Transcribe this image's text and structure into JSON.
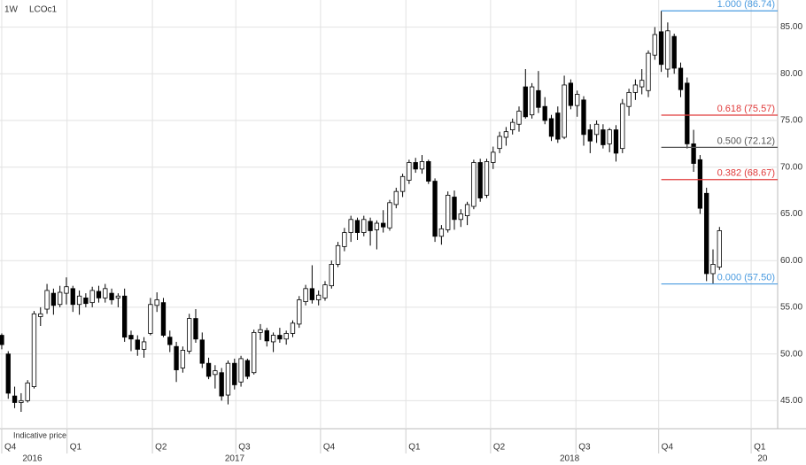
{
  "header": {
    "interval": "1W",
    "symbol": "LCOc1",
    "note": "Indicative price"
  },
  "chart_data": {
    "type": "candlestick",
    "up_color": "#ffffff",
    "down_color": "#000000",
    "outline": "#000000",
    "grid": true,
    "ylim": [
      42,
      87.9
    ],
    "yticks": [
      {
        "value": 45,
        "label": "45.00"
      },
      {
        "value": 50,
        "label": "50.00"
      },
      {
        "value": 55,
        "label": "55.00"
      },
      {
        "value": 60,
        "label": "60.00"
      },
      {
        "value": 65,
        "label": "65.00"
      },
      {
        "value": 70,
        "label": "70.00"
      },
      {
        "value": 75,
        "label": "75.00"
      },
      {
        "value": 80,
        "label": "80.00"
      },
      {
        "value": 85,
        "label": "85.00"
      }
    ],
    "xlim": [
      -0.27,
      120
    ],
    "xticks": [
      {
        "value": 0,
        "label": "Q4"
      },
      {
        "value": 10.1,
        "label": "Q1"
      },
      {
        "value": 23.3,
        "label": "Q2"
      },
      {
        "value": 36.2,
        "label": "Q3"
      },
      {
        "value": 49.3,
        "label": "Q4"
      },
      {
        "value": 62.5,
        "label": "Q1"
      },
      {
        "value": 75.6,
        "label": "Q2"
      },
      {
        "value": 88.8,
        "label": "Q3"
      },
      {
        "value": 101.6,
        "label": "Q4"
      },
      {
        "value": 115.9,
        "label": "Q1"
      }
    ],
    "year_ticks": [
      {
        "value": 3.2,
        "label": "2016"
      },
      {
        "value": 34.5,
        "label": "2017"
      },
      {
        "value": 86.3,
        "label": "2018"
      },
      {
        "value": 116.9,
        "label": "20"
      }
    ],
    "categories": [
      null,
      null,
      null,
      null,
      null,
      null,
      null,
      null,
      null,
      null,
      null,
      null,
      null,
      null,
      null,
      null,
      null,
      null,
      null,
      null,
      null,
      null,
      null,
      null,
      null,
      null,
      null,
      null,
      null,
      null,
      null,
      null,
      null,
      null,
      null,
      null,
      null,
      null,
      null,
      null,
      null,
      null,
      null,
      null,
      null,
      null,
      null,
      null,
      null,
      null,
      null,
      null,
      null,
      null,
      null,
      null,
      null,
      null,
      null,
      null,
      null,
      null,
      null,
      null,
      null,
      null,
      null,
      null,
      null,
      null,
      null,
      null,
      null,
      null,
      null,
      null,
      null,
      null,
      null,
      null,
      null,
      null,
      null,
      null,
      null,
      null,
      null,
      null,
      null,
      null,
      null,
      null,
      null,
      null,
      null,
      null,
      null,
      null,
      null,
      null,
      null,
      null,
      null,
      null,
      null,
      null,
      null,
      null,
      null,
      null,
      null,
      null
    ],
    "ohlc": [
      [
        52,
        52.2,
        50.5,
        51
      ],
      [
        50,
        50.3,
        45.2,
        45.8
      ],
      [
        45.5,
        46.5,
        44.2,
        44.8
      ],
      [
        44.8,
        45.8,
        43.8,
        45
      ],
      [
        45,
        47.2,
        44.8,
        46.9
      ],
      [
        46.5,
        54.6,
        46.3,
        54.3
      ],
      [
        54,
        55,
        53,
        54.3
      ],
      [
        54.8,
        57.5,
        54.3,
        56.8
      ],
      [
        56.5,
        57,
        54.2,
        55.2
      ],
      [
        55.3,
        57.3,
        55,
        56.6
      ],
      [
        56.5,
        58.2,
        55.3,
        57.2
      ],
      [
        57,
        57.3,
        54.5,
        55.3
      ],
      [
        55.3,
        56.8,
        54.2,
        56.2
      ],
      [
        56,
        56.5,
        55,
        55.4
      ],
      [
        55.5,
        57.2,
        55,
        56.8
      ],
      [
        56.7,
        57.3,
        55.5,
        56
      ],
      [
        56,
        57.5,
        55.5,
        57
      ],
      [
        56.5,
        57,
        55.3,
        55.8
      ],
      [
        56,
        56.5,
        55,
        56.2
      ],
      [
        56.2,
        57,
        51.3,
        51.8
      ],
      [
        52,
        52.5,
        50.3,
        51.6
      ],
      [
        51.5,
        52,
        49.8,
        50.5
      ],
      [
        50.5,
        51.8,
        49.6,
        51.3
      ],
      [
        52.2,
        56,
        52,
        55.3
      ],
      [
        55.2,
        56.6,
        54.5,
        55.8
      ],
      [
        55.5,
        56,
        51.8,
        52
      ],
      [
        51.8,
        52.5,
        50.2,
        51
      ],
      [
        50.8,
        51.3,
        47,
        48.3
      ],
      [
        48.5,
        50.8,
        48,
        50.4
      ],
      [
        50.3,
        54.3,
        50,
        53.8
      ],
      [
        53.8,
        54.8,
        51.2,
        51.6
      ],
      [
        51.5,
        52.3,
        48.5,
        49
      ],
      [
        49,
        49.6,
        47.3,
        47.6
      ],
      [
        47.8,
        48.8,
        46.3,
        48.2
      ],
      [
        48,
        48.5,
        45,
        45.5
      ],
      [
        45.6,
        49.3,
        44.6,
        49
      ],
      [
        49,
        49.5,
        46.2,
        46.7
      ],
      [
        47,
        49.8,
        46.5,
        49.5
      ],
      [
        49.3,
        49.5,
        47.3,
        47.6
      ],
      [
        48,
        52.6,
        47.8,
        52.3
      ],
      [
        52.3,
        53.2,
        51.5,
        52.6
      ],
      [
        52.5,
        52.8,
        50.8,
        51.4
      ],
      [
        51.3,
        52.3,
        50.2,
        52
      ],
      [
        52,
        52.8,
        51.2,
        51.6
      ],
      [
        51.6,
        52.5,
        51,
        52.2
      ],
      [
        52.2,
        53.6,
        51.8,
        53.3
      ],
      [
        53.2,
        56.2,
        52.8,
        55.8
      ],
      [
        55.6,
        57.4,
        55.2,
        57
      ],
      [
        57,
        59.5,
        55.4,
        55.8
      ],
      [
        55.8,
        56.8,
        55.2,
        56.3
      ],
      [
        56,
        57.8,
        55.7,
        57.4
      ],
      [
        57.3,
        60,
        57,
        59.6
      ],
      [
        59.6,
        62,
        59.3,
        61.6
      ],
      [
        61.5,
        63.5,
        61,
        63
      ],
      [
        63,
        64.8,
        62,
        64.4
      ],
      [
        64.3,
        64.6,
        62.2,
        63
      ],
      [
        63,
        64.8,
        62.6,
        64.4
      ],
      [
        64.2,
        64.6,
        61.6,
        63.2
      ],
      [
        63.3,
        64.3,
        61.2,
        64
      ],
      [
        64,
        65.4,
        63,
        63.6
      ],
      [
        63.5,
        66.5,
        63.2,
        66.2
      ],
      [
        66,
        67.8,
        65.6,
        67.4
      ],
      [
        67.4,
        69.3,
        66.8,
        69
      ],
      [
        68.6,
        70.8,
        68.2,
        70.5
      ],
      [
        70.5,
        71,
        69.4,
        69.8
      ],
      [
        69.8,
        71.3,
        69.3,
        70.6
      ],
      [
        70.6,
        70.8,
        68.2,
        68.5
      ],
      [
        68.5,
        68.8,
        62,
        62.6
      ],
      [
        62.6,
        63.8,
        61.7,
        63.4
      ],
      [
        63.3,
        67.4,
        63,
        67
      ],
      [
        66.8,
        67.5,
        63.3,
        64.4
      ],
      [
        64.4,
        65.5,
        63.6,
        65
      ],
      [
        64.8,
        66.3,
        63.8,
        66
      ],
      [
        65.8,
        70.8,
        65.5,
        70.5
      ],
      [
        70.5,
        70.9,
        66.3,
        66.7
      ],
      [
        67,
        70.9,
        66.7,
        70.6
      ],
      [
        70.5,
        72.2,
        69.8,
        71.6
      ],
      [
        72,
        73.8,
        71.5,
        73.3
      ],
      [
        73.2,
        74.3,
        72.3,
        73.8
      ],
      [
        74,
        75.2,
        73.5,
        74.8
      ],
      [
        74.6,
        76.5,
        73.8,
        76
      ],
      [
        78.6,
        80.5,
        75.2,
        75.4
      ],
      [
        75.6,
        79,
        75.2,
        78.6
      ],
      [
        78.2,
        80.3,
        75.8,
        76.4
      ],
      [
        76.5,
        77.5,
        74.6,
        75
      ],
      [
        75.2,
        75.6,
        72.8,
        73.3
      ],
      [
        75.8,
        76.5,
        72.6,
        73
      ],
      [
        73.2,
        79.8,
        73,
        78.8
      ],
      [
        79,
        79.4,
        76.2,
        76.6
      ],
      [
        76.6,
        78.2,
        75.4,
        77.8
      ],
      [
        77.2,
        77.6,
        72.3,
        73.5
      ],
      [
        74,
        74.6,
        71.5,
        72.8
      ],
      [
        73.5,
        75,
        72.6,
        74.6
      ],
      [
        74,
        74.6,
        72,
        72.4
      ],
      [
        72.5,
        74.2,
        71.6,
        74
      ],
      [
        74,
        74.5,
        70.6,
        71.5
      ],
      [
        72,
        77.3,
        71.5,
        76.8
      ],
      [
        76.5,
        78.4,
        75.5,
        78
      ],
      [
        78,
        79.4,
        77.2,
        78.8
      ],
      [
        78.6,
        80.5,
        77.8,
        79.3
      ],
      [
        78.2,
        82.5,
        77.5,
        82.2
      ],
      [
        82,
        85,
        81.5,
        84.2
      ],
      [
        84.5,
        86.74,
        80.2,
        81
      ],
      [
        80.5,
        85.5,
        79.6,
        84.6
      ],
      [
        84,
        84.3,
        80,
        80.6
      ],
      [
        80.6,
        81.2,
        77.5,
        78.3
      ],
      [
        79,
        79.6,
        72,
        72.5
      ],
      [
        72.5,
        74,
        69.5,
        70.4
      ],
      [
        70.8,
        71.3,
        65,
        65.6
      ],
      [
        67.2,
        67.8,
        57.8,
        58.6
      ],
      [
        58.6,
        61.2,
        57.5,
        59.6
      ],
      [
        59.3,
        63.6,
        59,
        63.2
      ]
    ],
    "fib_start": 102,
    "fib_levels": [
      {
        "value": 86.74,
        "label": "1.000 (86.74)",
        "color": "#4a9be0"
      },
      {
        "value": 75.57,
        "label": "0.618 (75.57)",
        "color": "#e03a3a"
      },
      {
        "value": 72.12,
        "label": "0.500 (72.12)",
        "color": "#555555"
      },
      {
        "value": 68.67,
        "label": "0.382 (68.67)",
        "color": "#e03a3a"
      },
      {
        "value": 57.5,
        "label": "0.000 (57.50)",
        "color": "#4a9be0"
      }
    ]
  }
}
